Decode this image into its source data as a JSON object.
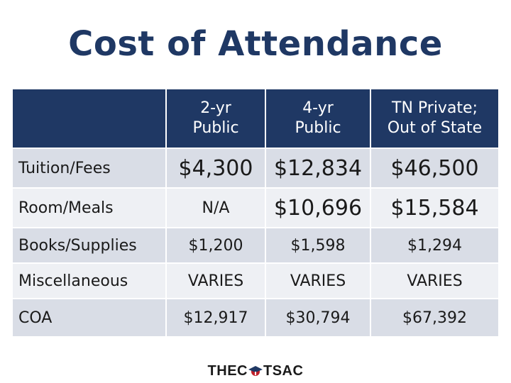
{
  "title": "Cost of Attendance",
  "table": {
    "headers": [
      {
        "line1": "",
        "line2": ""
      },
      {
        "line1": "2-yr",
        "line2": "Public"
      },
      {
        "line1": "4-yr",
        "line2": "Public"
      },
      {
        "line1": "TN Private;",
        "line2": "Out of State"
      }
    ],
    "rows": [
      {
        "label": "Tuition/Fees",
        "values": [
          "$4,300",
          "$12,834",
          "$46,500"
        ]
      },
      {
        "label": "Room/Meals",
        "values": [
          "N/A",
          "$10,696",
          "$15,584"
        ]
      },
      {
        "label": "Books/Supplies",
        "values": [
          "$1,200",
          "$1,598",
          "$1,294"
        ]
      },
      {
        "label": "Miscellaneous",
        "values": [
          "VARIES",
          "VARIES",
          "VARIES"
        ]
      },
      {
        "label": "COA",
        "values": [
          "$12,917",
          "$30,794",
          "$67,392"
        ]
      }
    ]
  },
  "logo": {
    "left": "THEC",
    "right": "TSAC",
    "brand_red": "#c0202a",
    "brand_blue": "#1f3864"
  }
}
